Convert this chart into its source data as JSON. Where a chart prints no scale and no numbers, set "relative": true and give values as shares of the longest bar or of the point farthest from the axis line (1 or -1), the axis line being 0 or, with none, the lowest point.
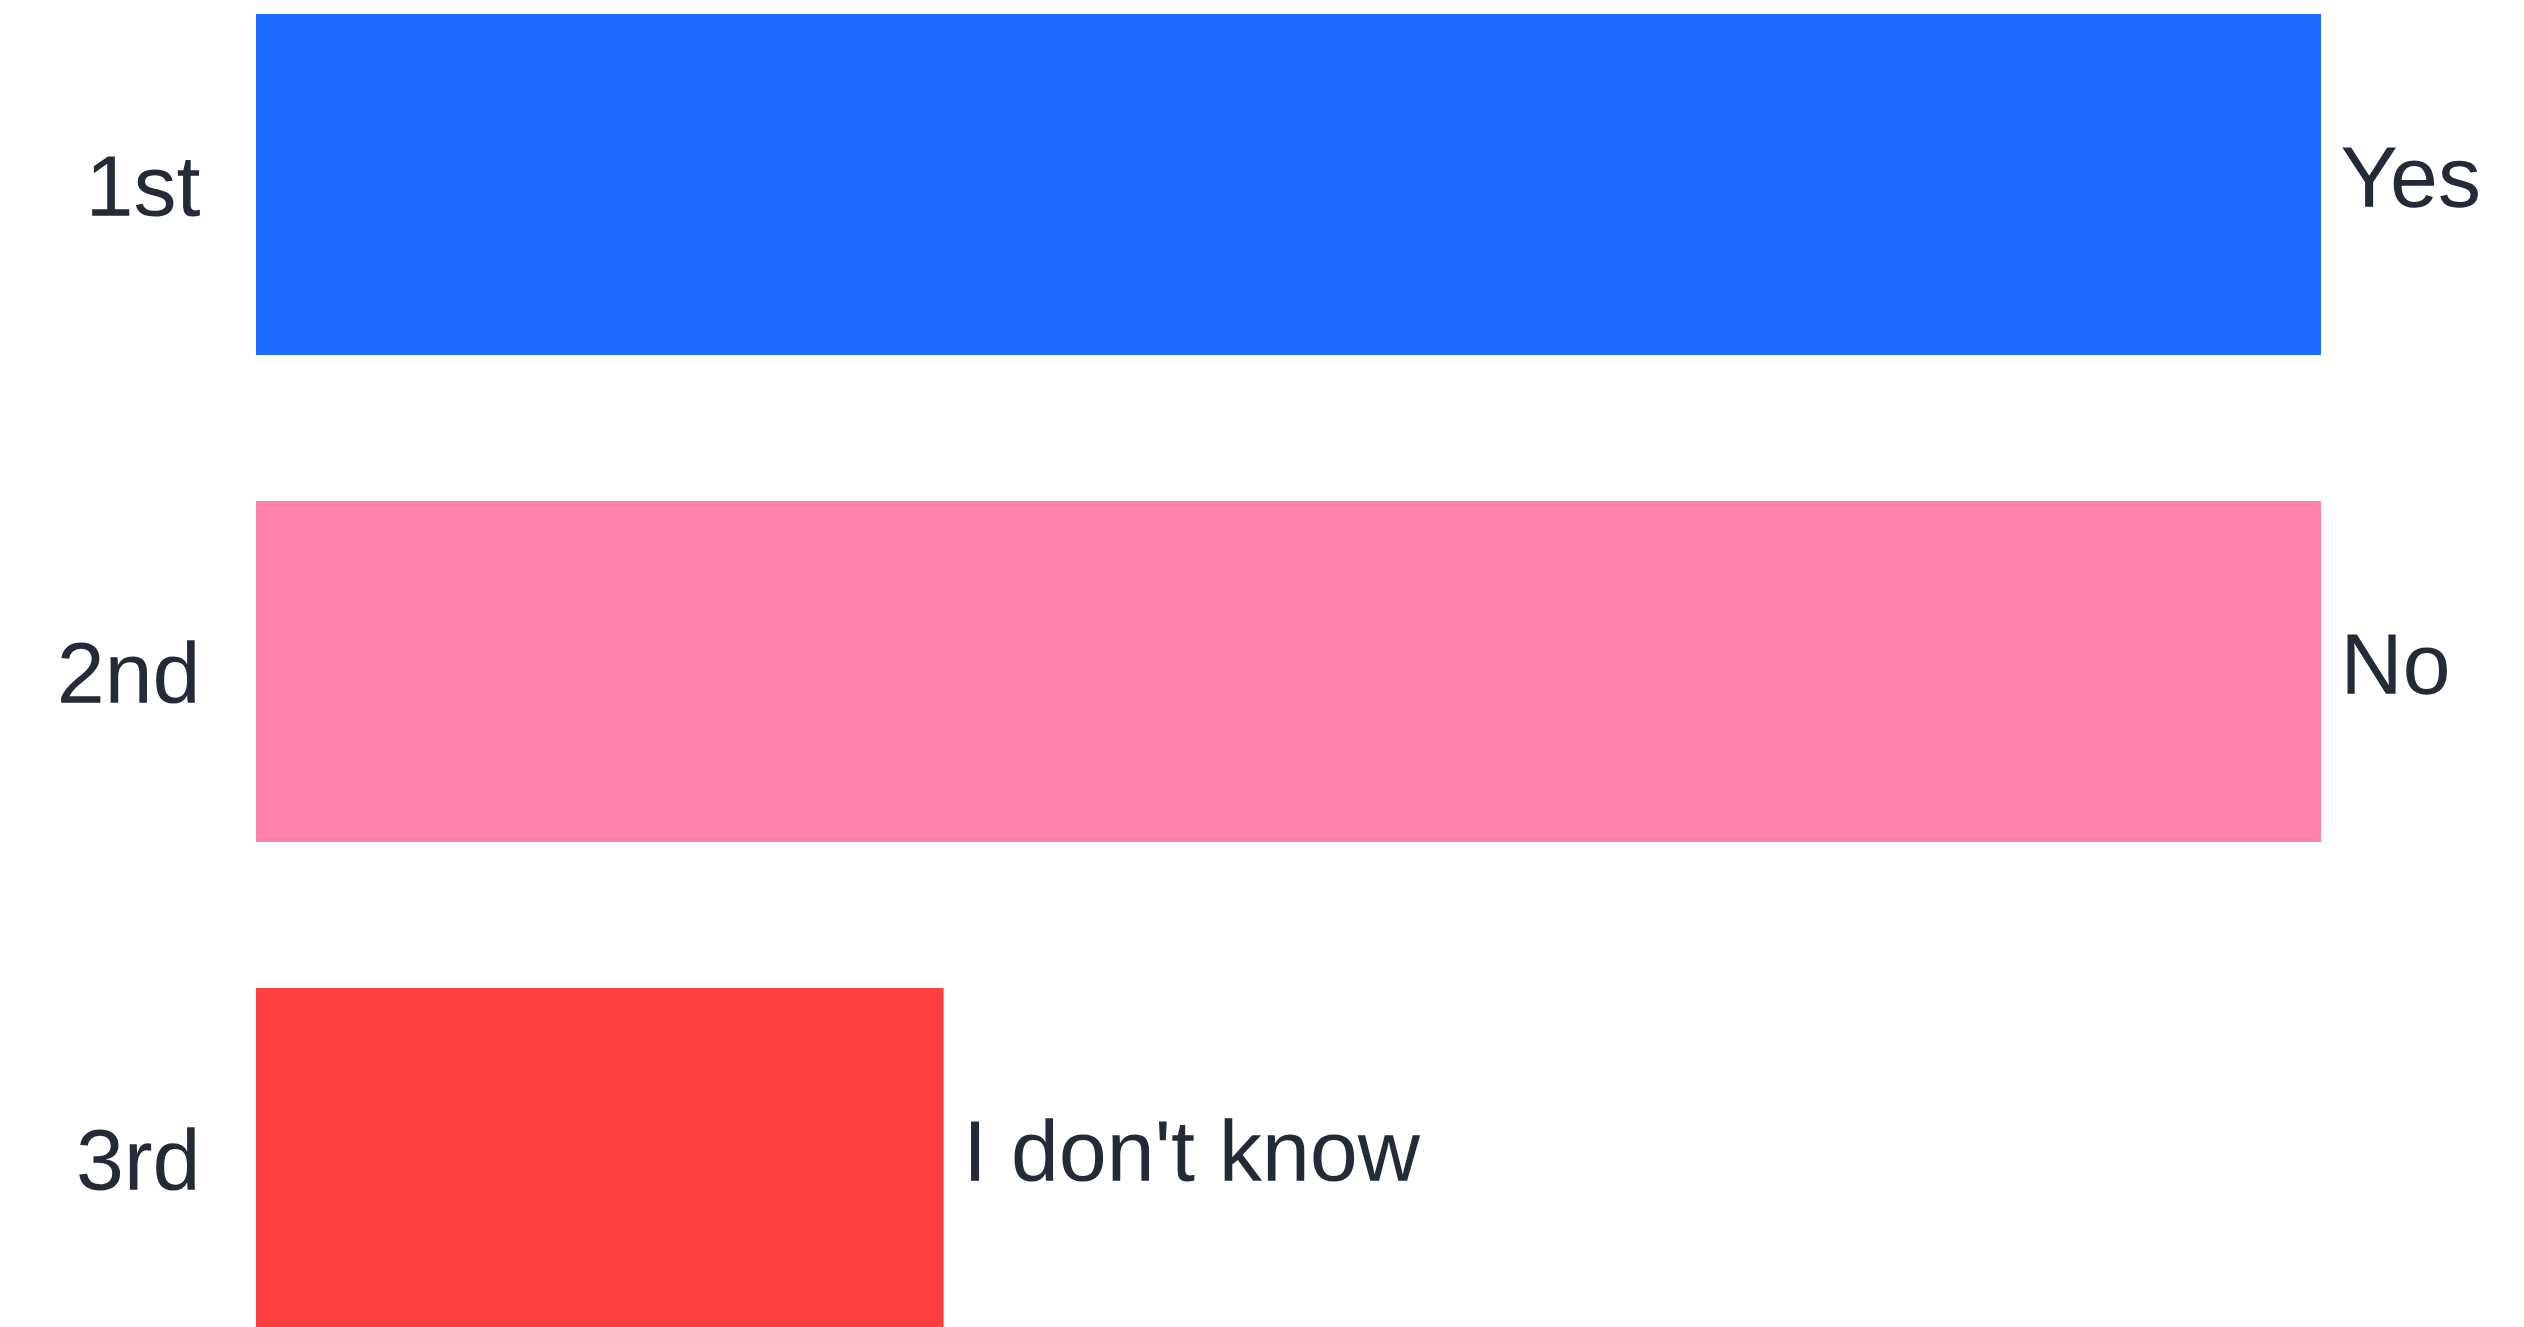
{
  "chart_data": {
    "type": "bar",
    "orientation": "horizontal",
    "relative": true,
    "categories": [
      "1st",
      "2nd",
      "3rd"
    ],
    "values": [
      1,
      1,
      0.333
    ],
    "colors": [
      "#1e6bff",
      "#ff80a8",
      "#ff4040"
    ],
    "annotations": [
      "Yes",
      "No",
      "I don't know"
    ],
    "grid": false,
    "legend": false
  }
}
